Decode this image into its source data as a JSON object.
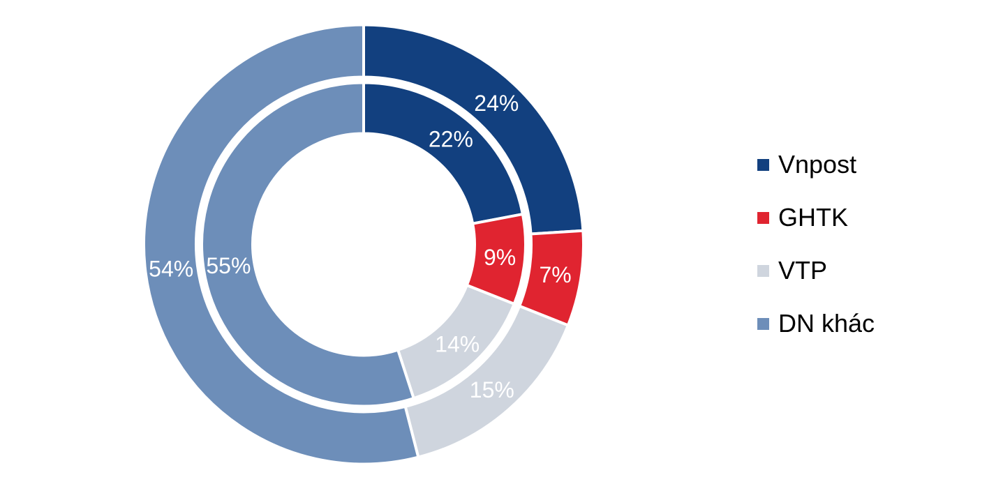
{
  "chart_data": {
    "type": "pie",
    "subtype": "nested-donut",
    "title": "",
    "categories": [
      "Vnpost",
      "GHTK",
      "VTP",
      "DN khác"
    ],
    "colors": [
      "#12407F",
      "#E02430",
      "#CFD5DE",
      "#6D8EB9"
    ],
    "unit": "%",
    "start_angle_deg": 0,
    "direction": "clockwise",
    "legend_position": "right",
    "label_color": "#ffffff",
    "separator_color": "#ffffff",
    "rings": [
      {
        "name": "outer",
        "values": [
          24,
          7,
          15,
          54
        ],
        "labels": [
          "24%",
          "7%",
          "15%",
          "54%"
        ]
      },
      {
        "name": "inner",
        "values": [
          22,
          9,
          14,
          55
        ],
        "labels": [
          "22%",
          "9%",
          "14%",
          "55%"
        ]
      }
    ]
  },
  "legend": {
    "items": [
      {
        "label": "Vnpost",
        "color": "#12407F"
      },
      {
        "label": "GHTK",
        "color": "#E02430"
      },
      {
        "label": "VTP",
        "color": "#CFD5DE"
      },
      {
        "label": "DN khác",
        "color": "#6D8EB9"
      }
    ]
  }
}
